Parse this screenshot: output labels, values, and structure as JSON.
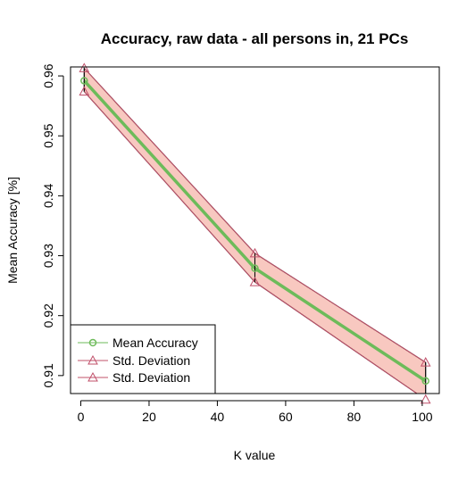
{
  "chart_data": {
    "type": "line",
    "title": "Accuracy, raw data - all persons in, 21 PCs",
    "xlabel": "K value",
    "ylabel": "Mean Accuracy [%]",
    "xlim": [
      -3,
      105
    ],
    "ylim": [
      0.907,
      0.9615
    ],
    "xticks": [
      0,
      20,
      40,
      60,
      80,
      100
    ],
    "xtick_labels": [
      "0",
      "20",
      "40",
      "60",
      "80",
      "100"
    ],
    "yticks": [
      0.91,
      0.92,
      0.93,
      0.94,
      0.95,
      0.96
    ],
    "ytick_labels": [
      "0.91",
      "0.92",
      "0.93",
      "0.94",
      "0.95",
      "0.96"
    ],
    "x": [
      1,
      51,
      101
    ],
    "series": [
      {
        "name": "Mean Accuracy",
        "values": [
          0.9592,
          0.9279,
          0.9091
        ],
        "color": "#6dbb5a"
      },
      {
        "name": "Std. Deviation",
        "values": [
          0.9613,
          0.9304,
          0.9122
        ],
        "color": "#c0506a"
      },
      {
        "name": "Std. Deviation",
        "values": [
          0.9574,
          0.9256,
          0.906
        ],
        "color": "#c0506a"
      }
    ],
    "band_fill": "#f8c8c0",
    "legend_position": "bottom-left",
    "grid": false
  }
}
